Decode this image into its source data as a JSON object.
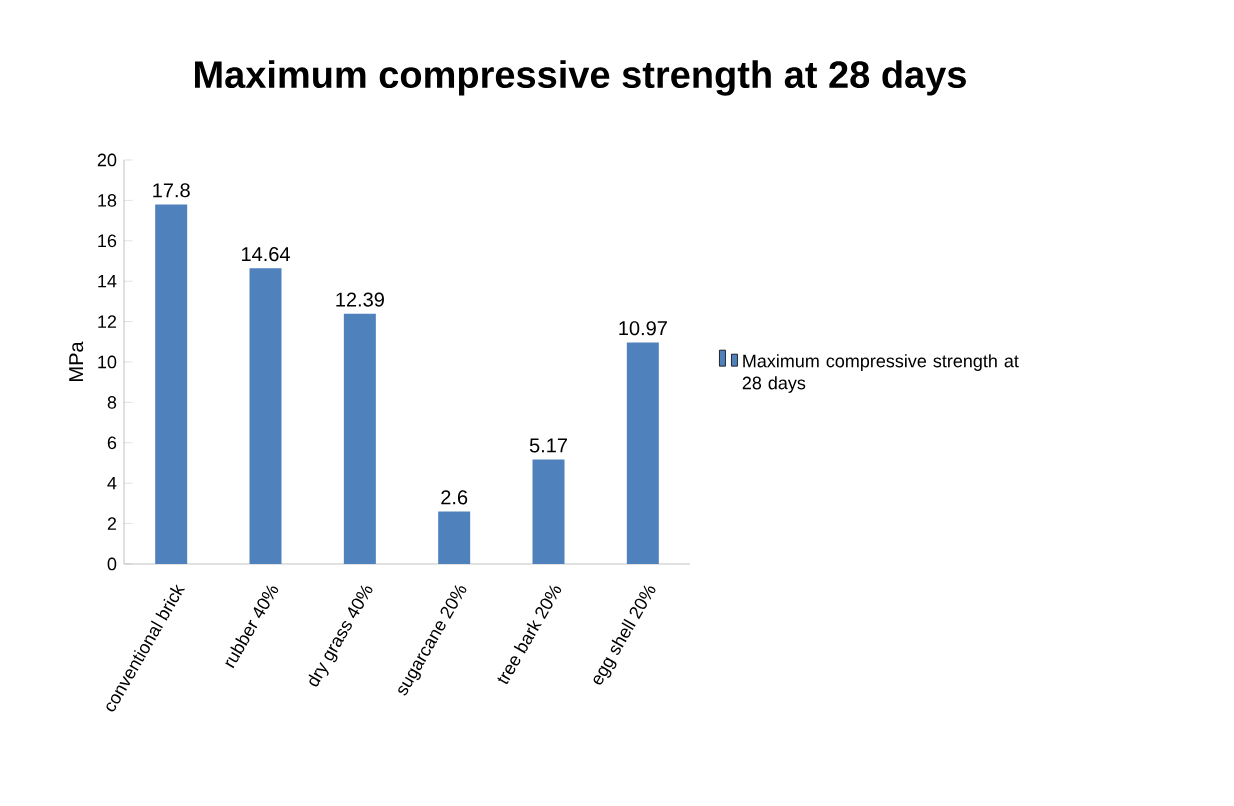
{
  "chart_data": {
    "type": "bar",
    "title": "Maximum compressive strength at 28 days",
    "ylabel": "MPa",
    "categories": [
      "conventional brick",
      "rubber 40%",
      "dry grass 40%",
      "sugarcane 20%",
      "tree bark 20%",
      "egg shell 20%"
    ],
    "series": [
      {
        "name": "Maximum compressive strength at 28 days",
        "color": "#4f81bd",
        "values": [
          17.8,
          14.64,
          12.39,
          2.6,
          5.17,
          10.97
        ]
      }
    ],
    "ylim": [
      0,
      20
    ],
    "yticks": [
      0,
      2,
      4,
      6,
      8,
      10,
      12,
      14,
      16,
      18,
      20
    ],
    "data_labels": true,
    "legend": "right",
    "grid": false
  }
}
